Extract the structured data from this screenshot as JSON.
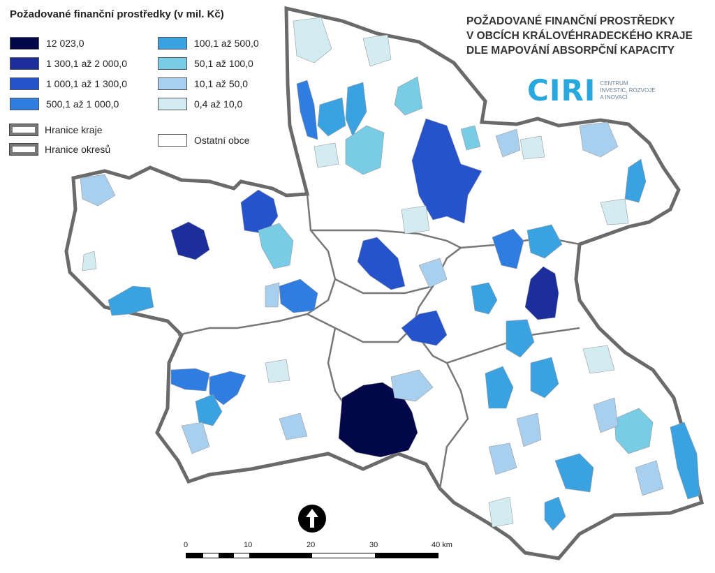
{
  "legend": {
    "title": "Požadované finanční prostředky (v mil. Kč)",
    "classes": [
      {
        "label": "12 023,0",
        "color": "#02074a"
      },
      {
        "label": "1 300,1 až 2 000,0",
        "color": "#1c2e9c"
      },
      {
        "label": "1 000,1 až 1 300,0",
        "color": "#2453cc"
      },
      {
        "label": "500,1 až 1 000,0",
        "color": "#2f7de0"
      },
      {
        "label": "100,1 až 500,0",
        "color": "#3ba2e2"
      },
      {
        "label": "50,1 až 100,0",
        "color": "#78cce6"
      },
      {
        "label": "10,1 až 50,0",
        "color": "#a9cfee"
      },
      {
        "label": "0,4 až 10,0",
        "color": "#d2ecf2"
      }
    ],
    "boundaries": {
      "region": "Hranice kraje",
      "district": "Hranice okresů",
      "other": "Ostatní obce"
    }
  },
  "map_title": {
    "line1": "POŽADOVANÉ FINANČNÍ PROSTŘEDKY",
    "line2": "V OBCÍCH KRÁLOVÉHRADECKÉHO KRAJE",
    "line3": "DLE MAPOVÁNÍ ABSORPČNÍ KAPACITY"
  },
  "logo": {
    "mark": "CIRI",
    "sub1": "CENTRUM",
    "sub2": "INVESTIC, ROZVOJE",
    "sub3": "A INOVACÍ"
  },
  "scale": {
    "ticks": [
      "0",
      "10",
      "20",
      "30",
      "40 km"
    ]
  }
}
